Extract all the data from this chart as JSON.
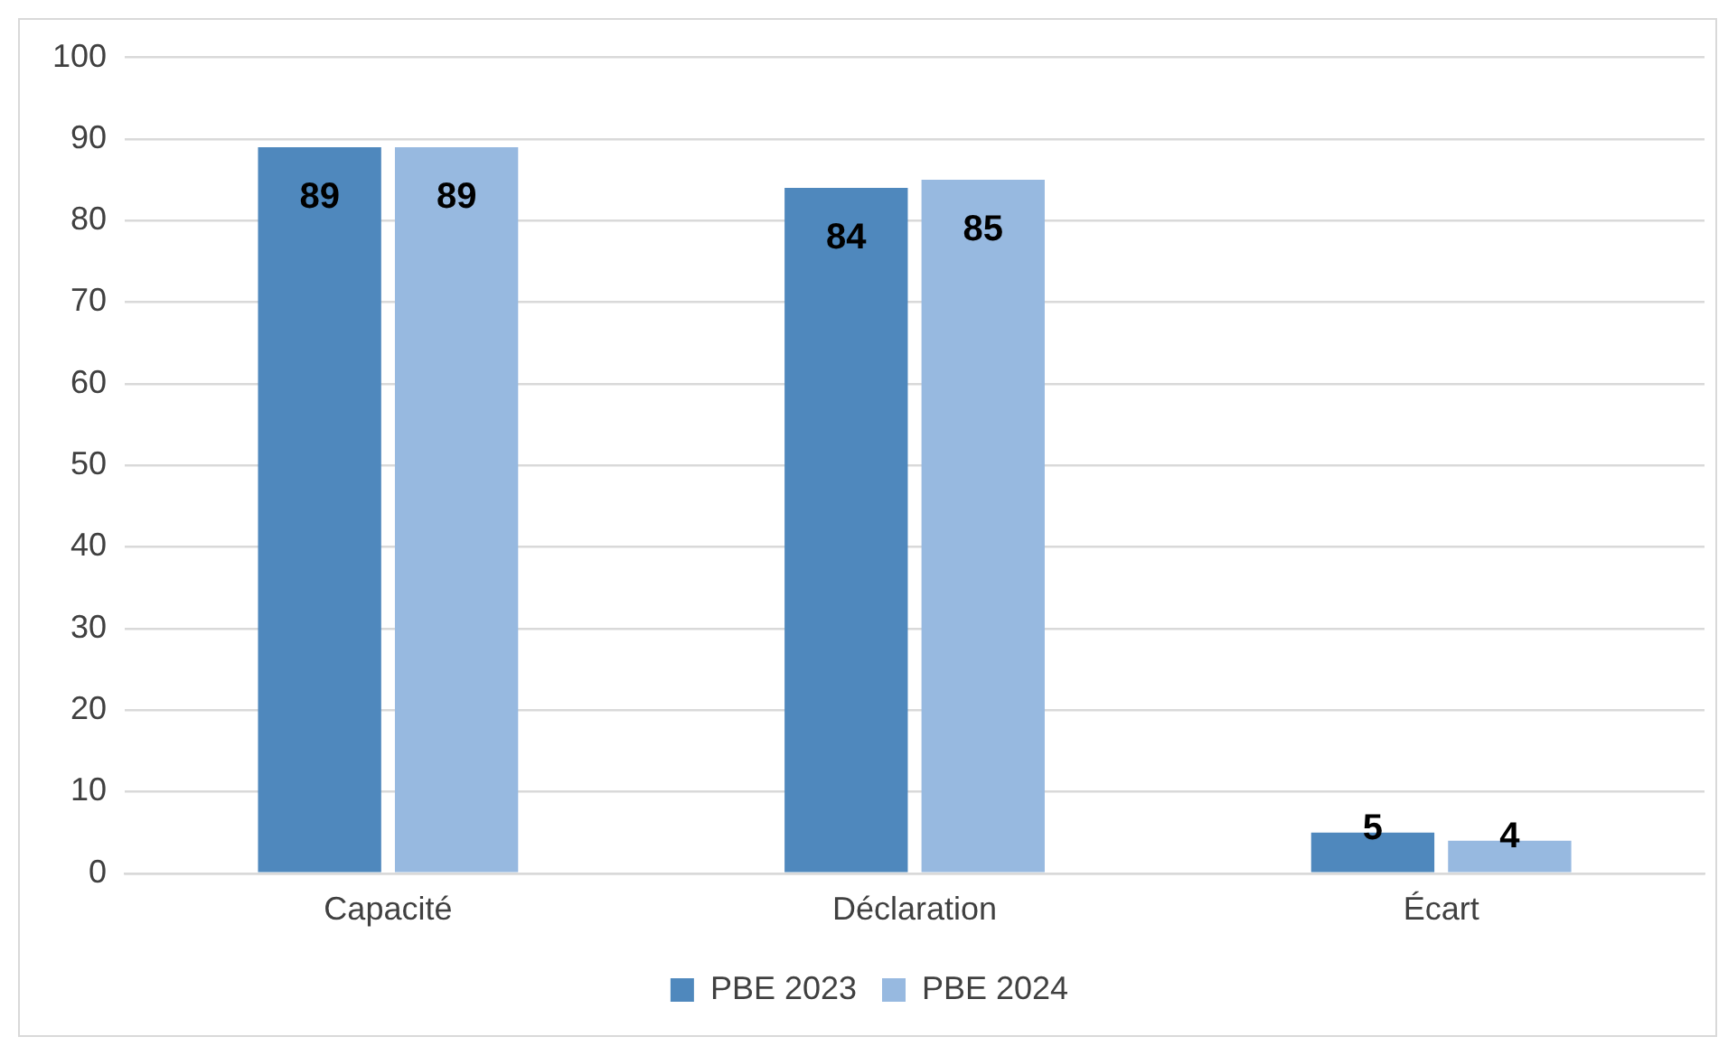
{
  "chart_data": {
    "type": "bar",
    "categories": [
      "Capacité",
      "Déclaration",
      "Écart"
    ],
    "series": [
      {
        "name": "PBE 2023",
        "color": "#4f88bd",
        "values": [
          89,
          84,
          5
        ]
      },
      {
        "name": "PBE 2024",
        "color": "#97b9e0",
        "values": [
          89,
          85,
          4
        ]
      }
    ],
    "ylim": [
      0,
      100
    ],
    "yticks": [
      0,
      10,
      20,
      30,
      40,
      50,
      60,
      70,
      80,
      90,
      100
    ],
    "grid": "y",
    "legend": "bottom",
    "data_labels": true
  }
}
